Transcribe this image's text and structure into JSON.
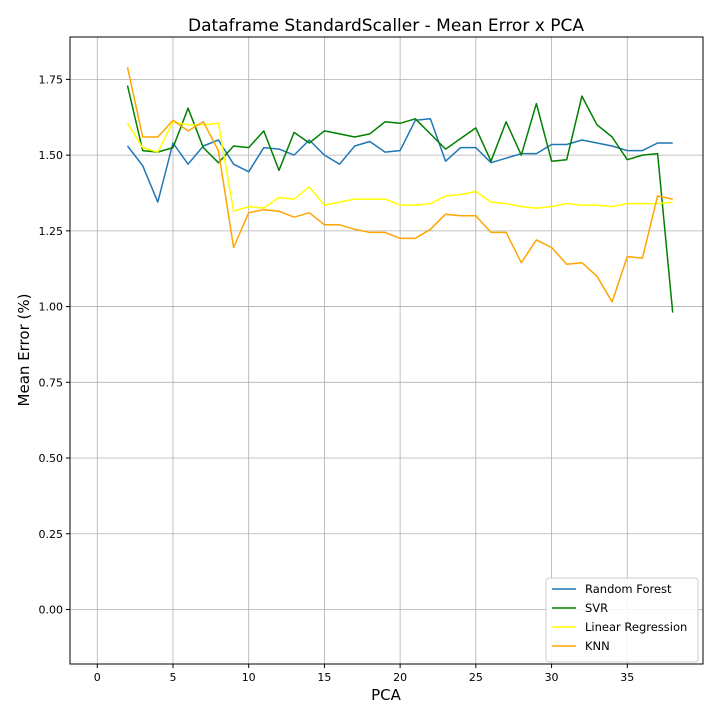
{
  "chart_data": {
    "type": "line",
    "title": "Dataframe StandardScaller - Mean Error x PCA",
    "xlabel": "PCA",
    "ylabel": "Mean Error (%)",
    "xlim": [
      -1.8,
      40.0
    ],
    "ylim": [
      -0.18,
      1.89
    ],
    "xticks": [
      0,
      5,
      10,
      15,
      20,
      25,
      30,
      35
    ],
    "xtick_labels": [
      "0",
      "5",
      "10",
      "15",
      "20",
      "25",
      "30",
      "35"
    ],
    "yticks": [
      0.0,
      0.25,
      0.5,
      0.75,
      1.0,
      1.25,
      1.5,
      1.75
    ],
    "ytick_labels": [
      "0.00",
      "0.25",
      "0.50",
      "0.75",
      "1.00",
      "1.25",
      "1.50",
      "1.75"
    ],
    "grid": true,
    "legend_position": "bottom-right",
    "x": [
      2,
      3,
      4,
      5,
      6,
      7,
      8,
      9,
      10,
      11,
      12,
      13,
      14,
      15,
      16,
      17,
      18,
      19,
      20,
      21,
      22,
      23,
      24,
      25,
      26,
      27,
      28,
      29,
      30,
      31,
      32,
      33,
      34,
      35,
      36,
      37,
      38
    ],
    "series": [
      {
        "name": "Random Forest",
        "color": "#1f77b4",
        "values": [
          1.53,
          1.465,
          1.345,
          1.54,
          1.47,
          1.53,
          1.55,
          1.47,
          1.445,
          1.525,
          1.52,
          1.5,
          1.55,
          1.5,
          1.47,
          1.53,
          1.545,
          1.51,
          1.515,
          1.615,
          1.62,
          1.48,
          1.525,
          1.525,
          1.475,
          1.49,
          1.505,
          1.505,
          1.535,
          1.535,
          1.55,
          1.54,
          1.53,
          1.515,
          1.515,
          1.54,
          1.54
        ]
      },
      {
        "name": "SVR",
        "color": "#008000",
        "values": [
          1.73,
          1.515,
          1.51,
          1.525,
          1.655,
          1.525,
          1.475,
          1.53,
          1.525,
          1.58,
          1.45,
          1.575,
          1.54,
          1.58,
          1.57,
          1.56,
          1.57,
          1.61,
          1.605,
          1.62,
          1.57,
          1.52,
          1.555,
          1.59,
          1.48,
          1.61,
          1.5,
          1.67,
          1.48,
          1.485,
          1.695,
          1.6,
          1.56,
          1.485,
          1.5,
          1.505,
          0.98
        ]
      },
      {
        "name": "Linear Regression",
        "color": "#ffff00",
        "values": [
          1.605,
          1.525,
          1.51,
          1.61,
          1.6,
          1.6,
          1.605,
          1.315,
          1.33,
          1.325,
          1.36,
          1.355,
          1.395,
          1.335,
          1.345,
          1.355,
          1.355,
          1.355,
          1.335,
          1.335,
          1.34,
          1.365,
          1.37,
          1.38,
          1.345,
          1.34,
          1.33,
          1.325,
          1.33,
          1.34,
          1.335,
          1.335,
          1.33,
          1.34,
          1.34,
          1.34,
          1.345
        ]
      },
      {
        "name": "KNN",
        "color": "#ffa500",
        "values": [
          1.79,
          1.56,
          1.56,
          1.615,
          1.58,
          1.61,
          1.515,
          1.195,
          1.31,
          1.32,
          1.315,
          1.295,
          1.31,
          1.27,
          1.27,
          1.255,
          1.245,
          1.245,
          1.225,
          1.225,
          1.255,
          1.305,
          1.3,
          1.3,
          1.245,
          1.245,
          1.145,
          1.22,
          1.195,
          1.14,
          1.145,
          1.1,
          1.015,
          1.165,
          1.16,
          1.365,
          1.355
        ]
      }
    ]
  }
}
